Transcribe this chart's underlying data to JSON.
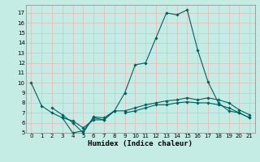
{
  "xlabel": "Humidex (Indice chaleur)",
  "xlim": [
    -0.5,
    21.5
  ],
  "ylim": [
    5,
    17.8
  ],
  "yticks": [
    5,
    6,
    7,
    8,
    9,
    10,
    11,
    12,
    13,
    14,
    15,
    16,
    17
  ],
  "xticks": [
    0,
    1,
    2,
    3,
    4,
    5,
    6,
    7,
    8,
    9,
    10,
    11,
    12,
    13,
    14,
    15,
    16,
    17,
    18,
    19,
    20,
    21
  ],
  "bg_color": "#c5ece4",
  "grid_color_v": "#e8b8b8",
  "grid_color_h": "#e8b8b8",
  "line_color": "#006060",
  "lines": [
    {
      "x": [
        0,
        1,
        2,
        3,
        4,
        5,
        6,
        7,
        8,
        9,
        10,
        11,
        12,
        13,
        14,
        15,
        16,
        17,
        18,
        19,
        20,
        21
      ],
      "y": [
        10,
        7.7,
        7.0,
        6.5,
        5.0,
        5.2,
        6.5,
        6.3,
        7.2,
        9.0,
        11.8,
        12.0,
        14.5,
        17.0,
        16.8,
        17.3,
        13.3,
        10.1,
        8.0,
        7.2,
        7.0,
        6.5
      ]
    },
    {
      "x": [
        2,
        3,
        4,
        5,
        6,
        7,
        8
      ],
      "y": [
        7.5,
        6.8,
        6.0,
        5.0,
        6.6,
        6.5,
        7.2
      ]
    },
    {
      "x": [
        3,
        4,
        5,
        6,
        7,
        8,
        9,
        10,
        11,
        12,
        13,
        14,
        15,
        16,
        17,
        18,
        19,
        20,
        21
      ],
      "y": [
        6.5,
        6.2,
        5.5,
        6.3,
        6.3,
        7.2,
        7.2,
        7.5,
        7.8,
        8.0,
        8.2,
        8.3,
        8.5,
        8.3,
        8.5,
        8.3,
        8.0,
        7.3,
        6.8
      ]
    },
    {
      "x": [
        9,
        10,
        11,
        12,
        13,
        14,
        15,
        16,
        17,
        18,
        19,
        20,
        21
      ],
      "y": [
        7.0,
        7.2,
        7.5,
        7.8,
        7.8,
        8.0,
        8.1,
        8.0,
        8.0,
        7.8,
        7.5,
        7.0,
        6.5
      ]
    }
  ]
}
